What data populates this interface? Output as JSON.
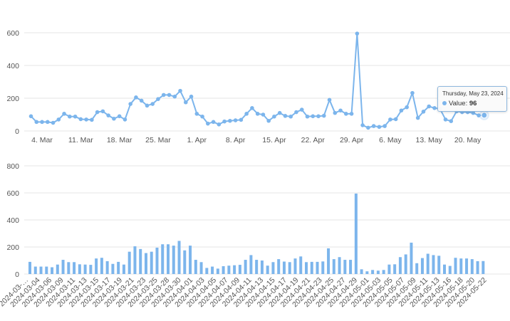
{
  "colors": {
    "series": "#7cb5ec",
    "grid": "#e6e6e6",
    "text": "#555555"
  },
  "tooltip": {
    "date": "Thursday, May 23, 2024",
    "series_label": "Value:",
    "value": "96"
  },
  "chart_data": [
    {
      "type": "line",
      "x_ticks": [
        "4. Mar",
        "11. Mar",
        "18. Mar",
        "25. Mar",
        "1. Apr",
        "8. Apr",
        "15. Apr",
        "22. Apr",
        "29. Apr",
        "6. May",
        "13. May",
        "20. May"
      ],
      "y_ticks": [
        "0",
        "200",
        "400",
        "600"
      ],
      "ylim": [
        0,
        650
      ],
      "grid": true,
      "x_start": "2024-03-02",
      "series": [
        {
          "name": "Value",
          "dates": [
            "2024-03-02",
            "2024-03-03",
            "2024-03-04",
            "2024-03-05",
            "2024-03-06",
            "2024-03-07",
            "2024-03-08",
            "2024-03-09",
            "2024-03-10",
            "2024-03-11",
            "2024-03-12",
            "2024-03-13",
            "2024-03-14",
            "2024-03-15",
            "2024-03-16",
            "2024-03-17",
            "2024-03-18",
            "2024-03-19",
            "2024-03-20",
            "2024-03-21",
            "2024-03-22",
            "2024-03-23",
            "2024-03-24",
            "2024-03-25",
            "2024-03-26",
            "2024-03-27",
            "2024-03-28",
            "2024-03-29",
            "2024-03-30",
            "2024-03-31",
            "2024-04-01",
            "2024-04-02",
            "2024-04-03",
            "2024-04-04",
            "2024-04-05",
            "2024-04-06",
            "2024-04-07",
            "2024-04-08",
            "2024-04-09",
            "2024-04-10",
            "2024-04-11",
            "2024-04-12",
            "2024-04-13",
            "2024-04-14",
            "2024-04-15",
            "2024-04-16",
            "2024-04-17",
            "2024-04-18",
            "2024-04-19",
            "2024-04-20",
            "2024-04-21",
            "2024-04-22",
            "2024-04-23",
            "2024-04-24",
            "2024-04-25",
            "2024-04-26",
            "2024-04-27",
            "2024-04-28",
            "2024-04-29",
            "2024-04-30",
            "2024-05-01",
            "2024-05-02",
            "2024-05-03",
            "2024-05-04",
            "2024-05-05",
            "2024-05-06",
            "2024-05-07",
            "2024-05-08",
            "2024-05-09",
            "2024-05-10",
            "2024-05-11",
            "2024-05-12",
            "2024-05-13",
            "2024-05-14",
            "2024-05-15",
            "2024-05-16",
            "2024-05-17",
            "2024-05-18",
            "2024-05-19",
            "2024-05-20",
            "2024-05-21",
            "2024-05-22",
            "2024-05-23"
          ],
          "values": [
            90,
            55,
            55,
            55,
            50,
            70,
            105,
            88,
            88,
            72,
            70,
            68,
            115,
            120,
            95,
            75,
            90,
            70,
            165,
            205,
            185,
            155,
            165,
            195,
            220,
            220,
            210,
            245,
            175,
            210,
            105,
            88,
            45,
            55,
            40,
            58,
            62,
            65,
            68,
            105,
            140,
            105,
            100,
            62,
            88,
            110,
            92,
            88,
            115,
            130,
            88,
            90,
            90,
            93,
            190,
            110,
            125,
            105,
            105,
            595,
            35,
            20,
            30,
            25,
            30,
            70,
            72,
            125,
            145,
            232,
            80,
            118,
            150,
            140,
            135,
            70,
            60,
            120,
            115,
            115,
            110,
            95,
            96
          ]
        }
      ]
    },
    {
      "type": "bar",
      "x_ticks": [
        "2024-03-…",
        "2024-03-04",
        "2024-03-06",
        "2024-03-09",
        "2024-03-11",
        "2024-03-13",
        "2024-03-15",
        "2024-03-17",
        "2024-03-19",
        "2024-03-21",
        "2024-03-23",
        "2024-03-25",
        "2024-03-28",
        "2024-03-30",
        "2024-04-01",
        "2024-04-03",
        "2024-04-05",
        "2024-04-07",
        "2024-04-09",
        "2024-04-11",
        "2024-04-13",
        "2024-04-15",
        "2024-04-17",
        "2024-04-19",
        "2024-04-21",
        "2024-04-23",
        "2024-04-25",
        "2024-04-27",
        "2024-04-29",
        "2024-05-01",
        "2024-05-03",
        "2024-05-05",
        "2024-05-07",
        "2024-05-09",
        "2024-05-11",
        "2024-05-13",
        "2024-05-16",
        "2024-05-18",
        "2024-05-20",
        "2024-05-22"
      ],
      "y_ticks": [
        "0",
        "200",
        "400",
        "600",
        "800"
      ],
      "ylim": [
        0,
        800
      ],
      "grid": true,
      "series": [
        {
          "name": "Value",
          "values": [
            90,
            55,
            55,
            55,
            50,
            70,
            105,
            88,
            88,
            72,
            70,
            68,
            115,
            120,
            95,
            75,
            90,
            70,
            165,
            205,
            185,
            155,
            165,
            195,
            220,
            220,
            210,
            245,
            175,
            210,
            105,
            88,
            45,
            55,
            40,
            58,
            62,
            65,
            68,
            105,
            140,
            105,
            100,
            62,
            88,
            110,
            92,
            88,
            115,
            130,
            88,
            90,
            90,
            93,
            190,
            110,
            125,
            105,
            105,
            595,
            35,
            20,
            30,
            25,
            30,
            70,
            72,
            125,
            145,
            232,
            80,
            118,
            150,
            140,
            135,
            70,
            60,
            120,
            115,
            115,
            110,
            95,
            96
          ]
        }
      ]
    }
  ]
}
